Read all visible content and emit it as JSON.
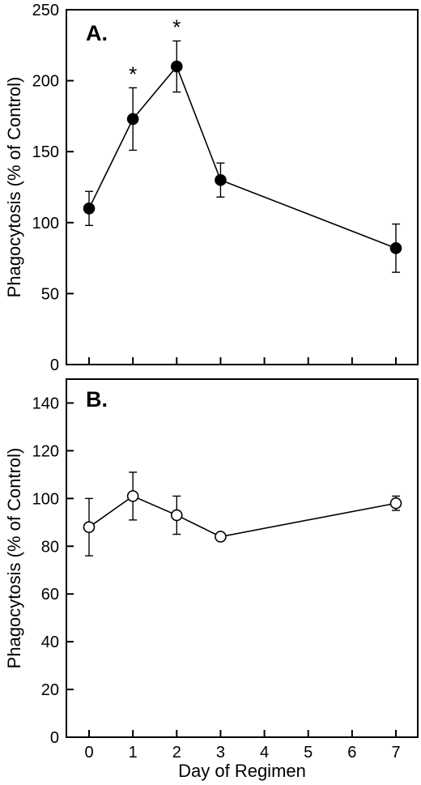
{
  "chart_data": [
    {
      "type": "line",
      "panel_label": "A.",
      "ylabel": "Phagocytosis (% of Control)",
      "xlabel": "",
      "ylim": [
        0,
        250
      ],
      "yticks": [
        0,
        50,
        100,
        150,
        200,
        250
      ],
      "xlim": [
        -0.5,
        7.5
      ],
      "xticks": [
        0,
        1,
        2,
        3,
        4,
        5,
        6,
        7
      ],
      "show_xtick_labels": false,
      "marker": "filled-circle",
      "grid": false,
      "series": [
        {
          "x": [
            0,
            1,
            2,
            3,
            7
          ],
          "y": [
            110,
            173,
            210,
            130,
            82
          ],
          "error": [
            12,
            22,
            18,
            12,
            17
          ]
        }
      ],
      "significance_marks": [
        {
          "x": 1,
          "text": "*"
        },
        {
          "x": 2,
          "text": "*"
        }
      ]
    },
    {
      "type": "line",
      "panel_label": "B.",
      "ylabel": "Phagocytosis (% of Control)",
      "xlabel": "Day of Regimen",
      "ylim": [
        0,
        150
      ],
      "yticks": [
        0,
        20,
        40,
        60,
        80,
        100,
        120,
        140
      ],
      "xlim": [
        -0.5,
        7.5
      ],
      "xticks": [
        0,
        1,
        2,
        3,
        4,
        5,
        6,
        7
      ],
      "xticklabels": [
        "0",
        "1",
        "2",
        "3",
        "4",
        "5",
        "6",
        "7"
      ],
      "show_xtick_labels": true,
      "marker": "open-circle",
      "grid": false,
      "series": [
        {
          "x": [
            0,
            1,
            2,
            3,
            7
          ],
          "y": [
            88,
            101,
            93,
            84,
            98
          ],
          "error": [
            12,
            10,
            8,
            0,
            3
          ]
        }
      ],
      "significance_marks": []
    }
  ]
}
